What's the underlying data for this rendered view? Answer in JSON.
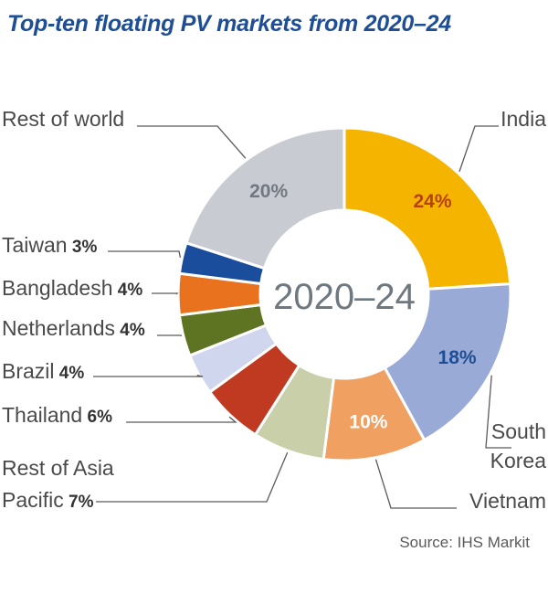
{
  "title": "Top-ten floating PV markets from 2020–24",
  "source": "Source: IHS Markit",
  "chart_data": {
    "type": "pie",
    "style": "donut",
    "center_label": "2020–24",
    "unit": "%",
    "slices": [
      {
        "name": "India",
        "value": 24,
        "label": "24%",
        "color": "#f5b400",
        "text_color": "#b5410b",
        "label_inside": true
      },
      {
        "name": "South Korea",
        "value": 18,
        "label": "18%",
        "color": "#9aaad6",
        "text_color": "#1e4e96",
        "label_inside": true
      },
      {
        "name": "Vietnam",
        "value": 10,
        "label": "10%",
        "color": "#f0a060",
        "text_color": "#ffffff",
        "label_inside": true
      },
      {
        "name": "Rest of Asia Pacific",
        "value": 7,
        "label": "7%",
        "color": "#c9cfa8",
        "label_inside": false
      },
      {
        "name": "Thailand",
        "value": 6,
        "label": "6%",
        "color": "#bf3a20",
        "label_inside": false
      },
      {
        "name": "Brazil",
        "value": 4,
        "label": "4%",
        "color": "#d0d6ee",
        "label_inside": false
      },
      {
        "name": "Netherlands",
        "value": 4,
        "label": "4%",
        "color": "#5e7422",
        "label_inside": false
      },
      {
        "name": "Bangladesh",
        "value": 4,
        "label": "4%",
        "color": "#e8721e",
        "label_inside": false
      },
      {
        "name": "Taiwan",
        "value": 3,
        "label": "3%",
        "color": "#1a4d9c",
        "label_inside": false
      },
      {
        "name": "Rest of world",
        "value": 20,
        "label": "20%",
        "color": "#c8ccd2",
        "text_color": "#707880",
        "label_inside": true
      }
    ]
  }
}
